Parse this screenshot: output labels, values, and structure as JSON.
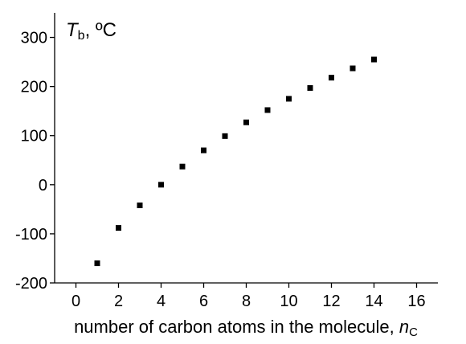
{
  "chart_data": {
    "type": "scatter",
    "y_label": {
      "symbol": "T",
      "subscript": "b",
      "rest": ", ºC"
    },
    "x_label": {
      "text": "number of carbon atoms in the molecule, ",
      "symbol": "n",
      "subscript": "C"
    },
    "x": [
      1,
      2,
      3,
      4,
      5,
      6,
      7,
      8,
      9,
      10,
      11,
      12,
      13,
      14
    ],
    "values": [
      -160,
      -88,
      -42,
      0,
      37,
      70,
      99,
      127,
      152,
      175,
      197,
      218,
      237,
      255
    ],
    "color": "#000000",
    "xlim": [
      -1,
      17
    ],
    "xticks": [
      0,
      2,
      4,
      6,
      8,
      10,
      12,
      14,
      16
    ],
    "ylim": [
      -200,
      350
    ],
    "yticks": [
      -200,
      -100,
      0,
      100,
      200,
      300
    ]
  }
}
